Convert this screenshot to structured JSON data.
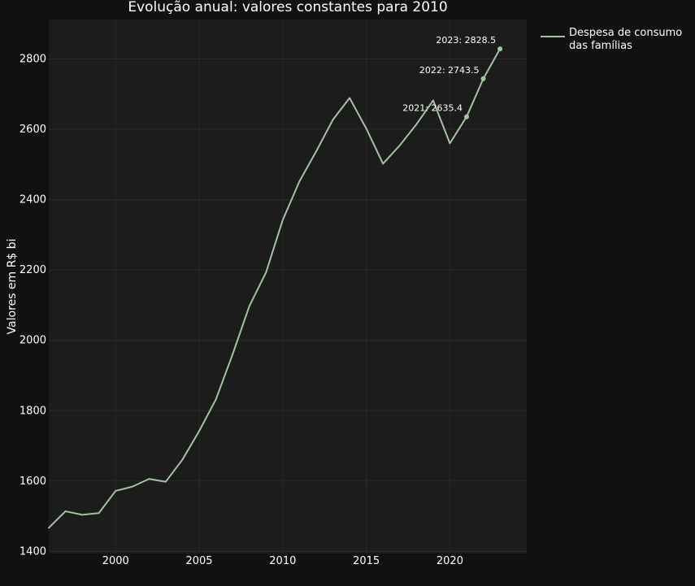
{
  "chart_data": {
    "type": "line",
    "title": "Evolução anual: valores constantes para 2010",
    "xlabel": "",
    "ylabel": "Valores em R$ bi",
    "xlim": [
      1996,
      2024.6
    ],
    "ylim": [
      1394,
      2912
    ],
    "x_ticks": [
      2000,
      2005,
      2010,
      2015,
      2020
    ],
    "y_ticks": [
      1400,
      1600,
      1800,
      2000,
      2200,
      2400,
      2600,
      2800
    ],
    "grid": true,
    "legend_position": "top-right",
    "colors": {
      "page_background": "#111111",
      "plot_background": "#1c1c1c",
      "grid": "#2a2a2a",
      "series_line": "#a3c4a0",
      "text": "#ffffff"
    },
    "series": [
      {
        "name_lines": [
          "Despesa de consumo",
          "das famílias"
        ],
        "x": [
          1996,
          1997,
          1998,
          1999,
          2000,
          2001,
          2002,
          2003,
          2004,
          2005,
          2006,
          2007,
          2008,
          2009,
          2010,
          2011,
          2012,
          2013,
          2014,
          2015,
          2016,
          2017,
          2018,
          2019,
          2020,
          2021,
          2022,
          2023
        ],
        "values": [
          1467,
          1514,
          1504,
          1509,
          1572,
          1584,
          1606,
          1598,
          1661,
          1742,
          1832,
          1960,
          2097,
          2193,
          2342,
          2452,
          2537,
          2627,
          2689,
          2602,
          2502,
          2554,
          2614,
          2682,
          2560,
          2635.4,
          2743.5,
          2828.5
        ]
      }
    ],
    "annotations": [
      {
        "x": 2021,
        "y": 2635.4,
        "text": "2021: 2635.4"
      },
      {
        "x": 2022,
        "y": 2743.5,
        "text": "2022: 2743.5"
      },
      {
        "x": 2023,
        "y": 2828.5,
        "text": "2023: 2828.5"
      }
    ]
  }
}
